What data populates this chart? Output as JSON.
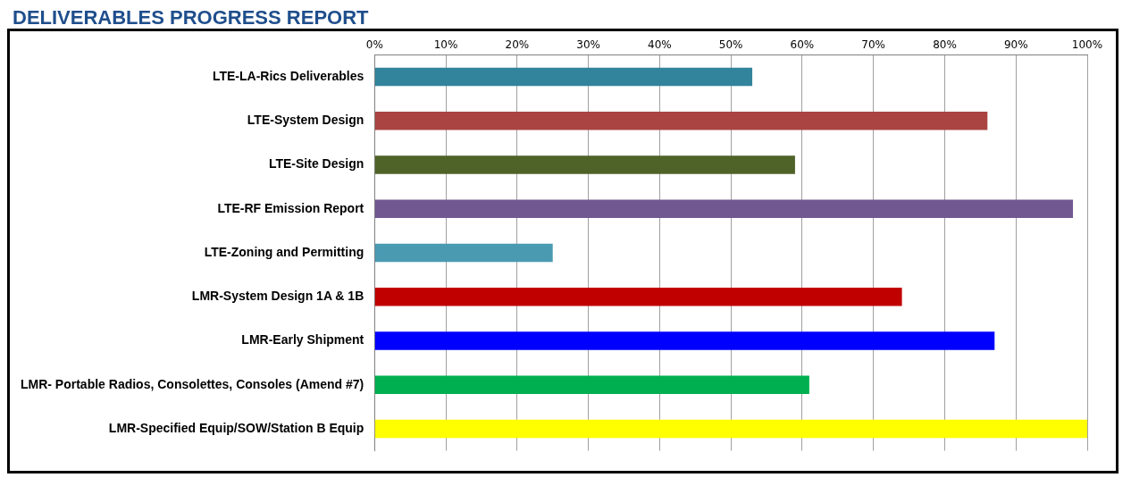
{
  "chart_data": {
    "type": "bar",
    "orientation": "horizontal",
    "title": "DELIVERABLES PROGRESS REPORT",
    "categories": [
      "LTE-LA-Rics Deliverables",
      "LTE-System Design",
      "LTE-Site Design",
      "LTE-RF Emission Report",
      "LTE-Zoning and Permitting",
      "LMR-System Design 1A & 1B",
      "LMR-Early Shipment",
      "LMR- Portable Radios, Consolettes, Consoles (Amend #7)",
      "LMR-Specified Equip/SOW/Station B Equip"
    ],
    "values": [
      53,
      86,
      59,
      98,
      25,
      74,
      87,
      61,
      100
    ],
    "colors": [
      "#31849b",
      "#a94442",
      "#4f6228",
      "#725890",
      "#4a9ab2",
      "#c00000",
      "#0000ff",
      "#00b050",
      "#ffff00"
    ],
    "xlim": [
      0,
      100
    ],
    "xticks": [
      {
        "value": 0,
        "label": "0%"
      },
      {
        "value": 10,
        "label": "10%"
      },
      {
        "value": 20,
        "label": "20%"
      },
      {
        "value": 30,
        "label": "30%"
      },
      {
        "value": 40,
        "label": "40%"
      },
      {
        "value": 50,
        "label": "50%"
      },
      {
        "value": 60,
        "label": "60%"
      },
      {
        "value": 70,
        "label": "70%"
      },
      {
        "value": 80,
        "label": "80%"
      },
      {
        "value": 90,
        "label": "90%"
      },
      {
        "value": 100,
        "label": "100%"
      }
    ],
    "grid": "x",
    "legend": false
  }
}
